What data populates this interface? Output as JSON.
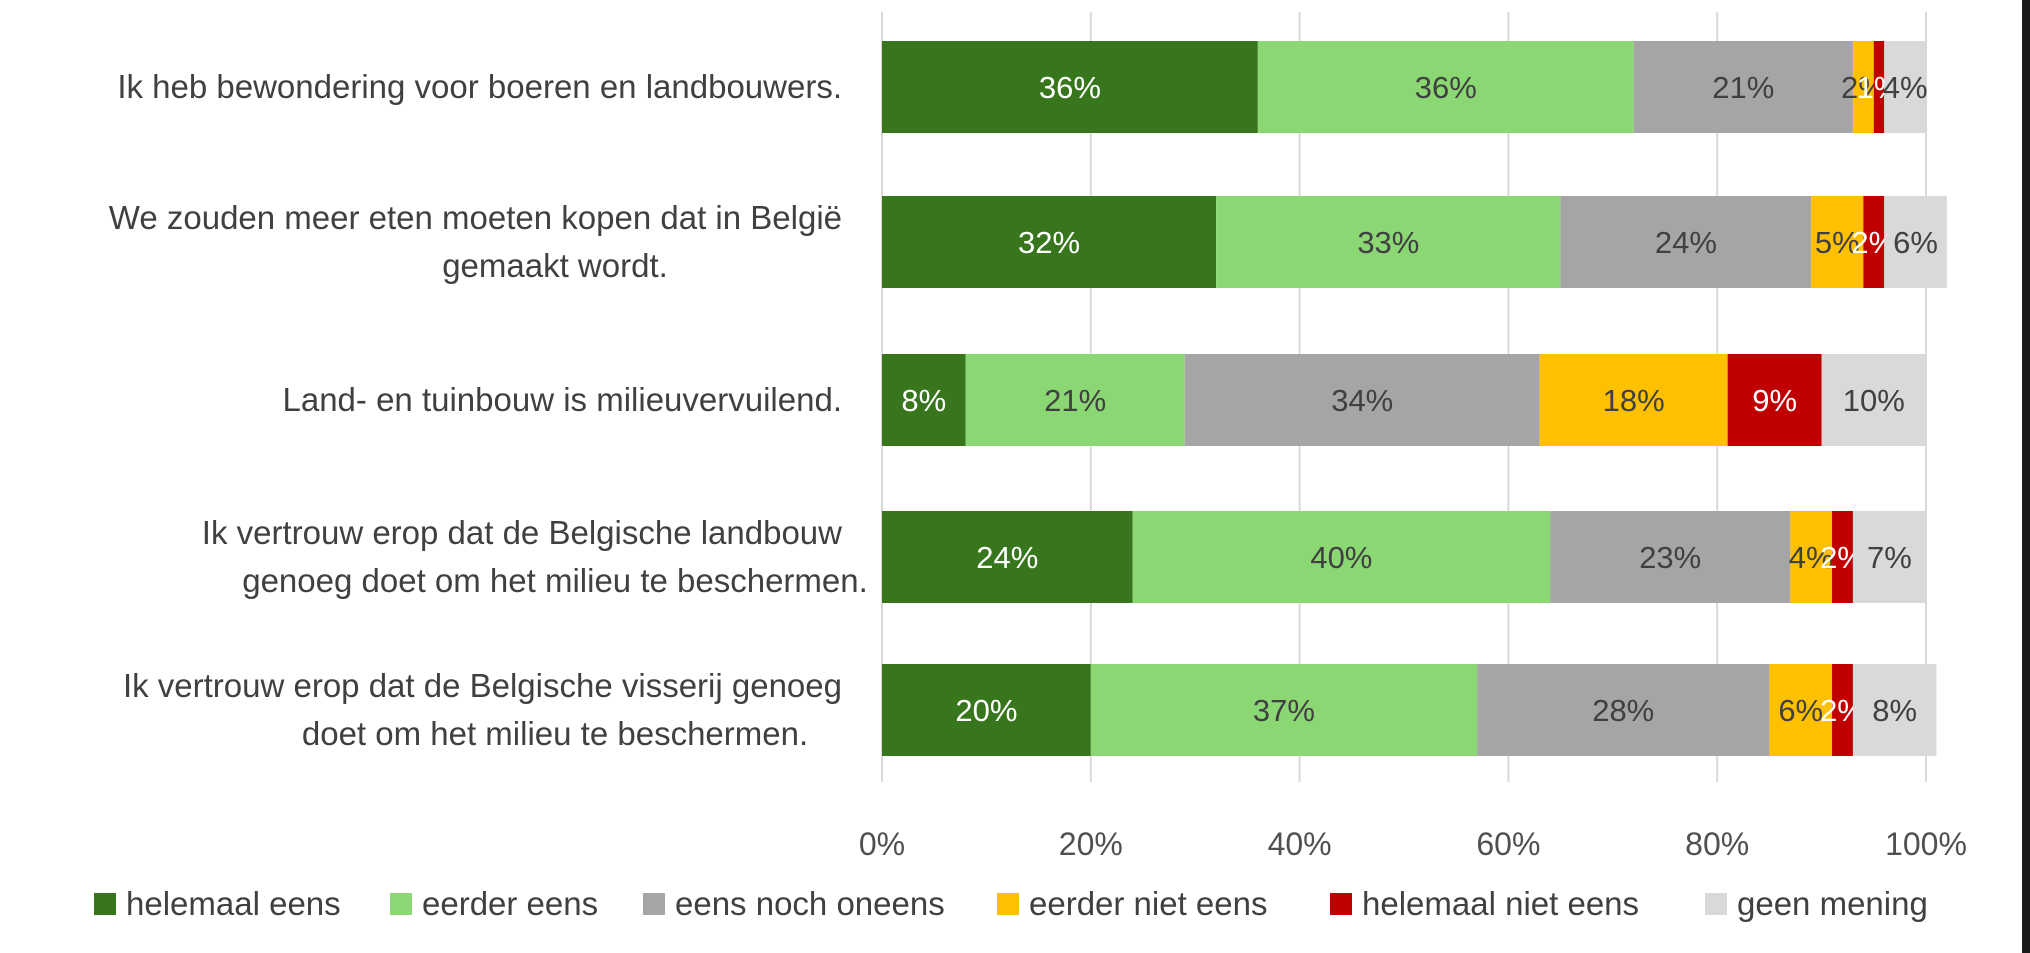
{
  "chart_data": {
    "type": "bar",
    "orientation": "horizontal",
    "stacked": "100%",
    "title": "",
    "xlabel": "",
    "ylabel": "",
    "xlim": [
      0,
      100
    ],
    "x_ticks": [
      "0%",
      "20%",
      "40%",
      "60%",
      "80%",
      "100%"
    ],
    "grid": true,
    "legend_position": "bottom",
    "categories": [
      [
        "Ik heb bewondering voor boeren en landbouwers."
      ],
      [
        "We zouden meer eten moeten kopen dat in België",
        "gemaakt wordt."
      ],
      [
        "Land- en tuinbouw is milieuvervuilend."
      ],
      [
        "Ik vertrouw erop dat de Belgische landbouw",
        "genoeg doet om het milieu te beschermen."
      ],
      [
        "Ik vertrouw erop dat de Belgische visserij genoeg",
        "doet om het milieu te beschermen."
      ]
    ],
    "series": [
      {
        "name": "helemaal eens",
        "color": "#38761d",
        "label_color": "#ffffff",
        "values": [
          36,
          32,
          8,
          24,
          20
        ],
        "labels": [
          "36%",
          "32%",
          "8%",
          "24%",
          "20%"
        ]
      },
      {
        "name": "eerder eens",
        "color": "#8bd774",
        "label_color": "#404040",
        "values": [
          36,
          33,
          21,
          40,
          37
        ],
        "labels": [
          "36%",
          "33%",
          "21%",
          "40%",
          "37%"
        ]
      },
      {
        "name": "eens noch oneens",
        "color": "#a5a5a5",
        "label_color": "#404040",
        "values": [
          21,
          24,
          34,
          23,
          28
        ],
        "labels": [
          "21%",
          "24%",
          "34%",
          "23%",
          "28%"
        ]
      },
      {
        "name": "eerder niet eens",
        "color": "#ffc000",
        "label_color": "#404040",
        "values": [
          2,
          5,
          18,
          4,
          6
        ],
        "labels": [
          "2%",
          "5%",
          "18%",
          "4%",
          "6%"
        ]
      },
      {
        "name": "helemaal niet eens",
        "color": "#c00000",
        "label_color": "#ffffff",
        "values": [
          1,
          2,
          9,
          2,
          2
        ],
        "labels": [
          "1%",
          "2%",
          "9%",
          "2%",
          "2%"
        ]
      },
      {
        "name": "geen mening",
        "color": "#d9d9d9",
        "label_color": "#404040",
        "values": [
          4,
          6,
          10,
          7,
          8
        ],
        "labels": [
          "4%",
          "6%",
          "10%",
          "7%",
          "8%"
        ]
      }
    ]
  }
}
